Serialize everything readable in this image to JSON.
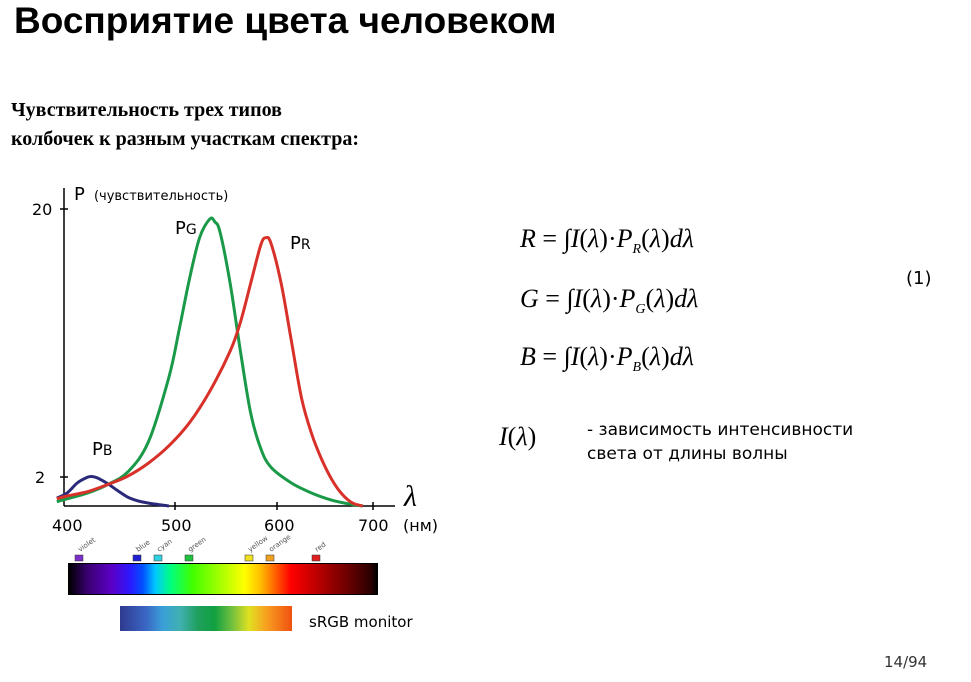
{
  "slide": {
    "title": "Восприятие цвета человеком",
    "subtitle_line1": "Чувствительность трех типов",
    "subtitle_line2": "колбочек к разным участкам спектра:",
    "page": "14/94"
  },
  "chart_data": {
    "type": "line",
    "ylabel_main": "P",
    "ylabel_note": "(чувствительность)",
    "xlabel_symbol": "λ",
    "xunit": "(нм)",
    "xticks": [
      "400",
      "500",
      "600",
      "700"
    ],
    "yticks": [
      "2",
      "20"
    ],
    "xlim": [
      400,
      700
    ],
    "ylim": [
      0,
      21.5
    ],
    "series": [
      {
        "name_main": "P",
        "name_sub": "B",
        "color": "#2b2a7a",
        "x": [
          390,
          400,
          410,
          420,
          425,
          430,
          440,
          450,
          460,
          470,
          480,
          490,
          500
        ],
        "y": [
          0.55,
          0.9,
          1.6,
          2.0,
          2.05,
          1.95,
          1.55,
          1.05,
          0.6,
          0.35,
          0.2,
          0.1,
          0.0
        ]
      },
      {
        "name_main": "P",
        "name_sub": "G",
        "color": "#1a9a48",
        "x": [
          390,
          400,
          420,
          440,
          460,
          480,
          500,
          510,
          520,
          530,
          540,
          545,
          550,
          560,
          570,
          580,
          590,
          600,
          620,
          640,
          660,
          680,
          690
        ],
        "y": [
          0.3,
          0.5,
          0.9,
          1.5,
          2.4,
          4.5,
          9.0,
          12.3,
          15.8,
          18.7,
          20.0,
          19.8,
          19.1,
          15.5,
          10.8,
          6.5,
          4.0,
          2.7,
          1.6,
          0.9,
          0.4,
          0.1,
          0.0
        ]
      },
      {
        "name_main": "P",
        "name_sub": "R",
        "color": "#d8312a",
        "x": [
          390,
          400,
          420,
          440,
          460,
          480,
          500,
          520,
          540,
          560,
          570,
          580,
          590,
          595,
          600,
          610,
          620,
          630,
          640,
          650,
          660,
          670,
          680,
          690
        ],
        "y": [
          0.5,
          0.7,
          1.0,
          1.5,
          2.1,
          3.0,
          4.2,
          5.8,
          8.0,
          10.8,
          12.8,
          15.5,
          18.2,
          18.7,
          18.3,
          15.5,
          11.5,
          7.5,
          5.0,
          3.2,
          1.8,
          0.8,
          0.2,
          0.0
        ]
      }
    ]
  },
  "spectrum": {
    "labels": [
      "violet",
      "blue",
      "cyan",
      "green",
      "yellow",
      "orange",
      "red"
    ],
    "colors": [
      "#7a30c8",
      "#2020d0",
      "#30d0e0",
      "#20c040",
      "#f0e020",
      "#f0a020",
      "#e02020"
    ],
    "srgb_label": "sRGB monitor"
  },
  "formulas": [
    {
      "lhs": "R",
      "sub": "R"
    },
    {
      "lhs": "G",
      "sub": "G"
    },
    {
      "lhs": "B",
      "sub": "B"
    }
  ],
  "formula_parts": {
    "eq": "=",
    "integral": "∫",
    "I": "I",
    "lp": "(",
    "lambda": "λ",
    "rp": ")",
    "dot": "·",
    "P": "P",
    "d": "d"
  },
  "eq_number": "(1)",
  "note": {
    "line1": "-  зависимость интенсивности",
    "line2": "света от длины волны"
  }
}
